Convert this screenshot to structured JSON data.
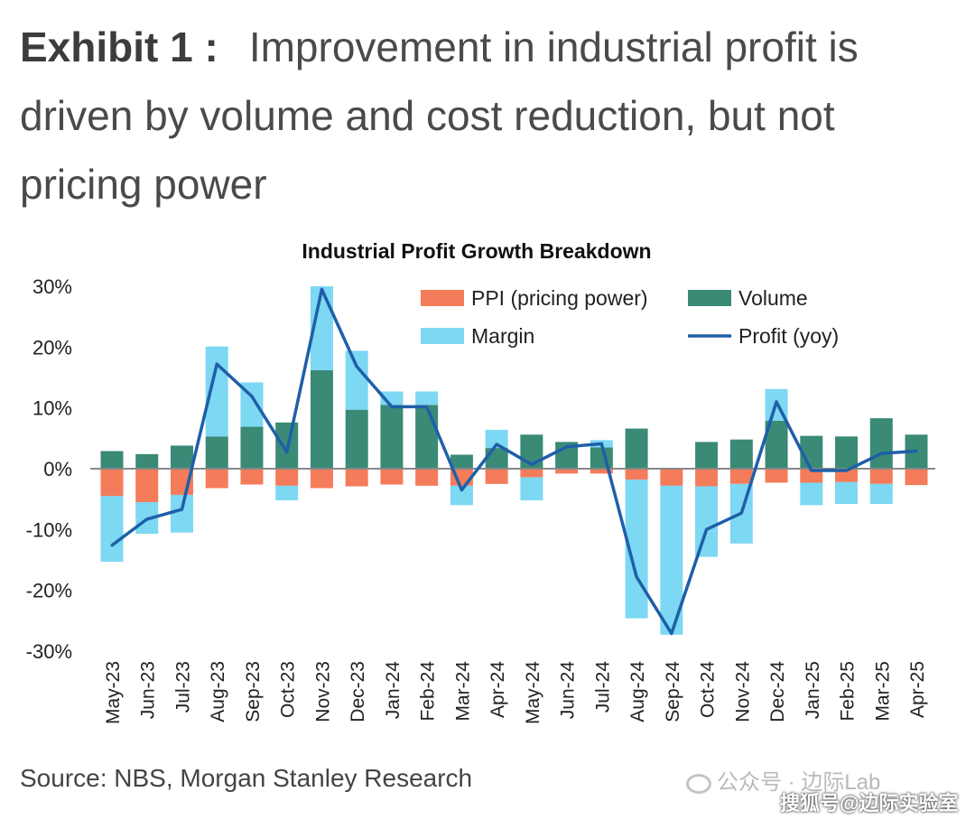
{
  "heading": {
    "lead": "Exhibit 1 :",
    "rest": "Improvement in industrial profit is driven by volume and cost reduction, but not pricing power"
  },
  "source": "Source: NBS, Morgan Stanley Research",
  "watermark": {
    "line1": "公众号 · 边际Lab",
    "line2": "搜狐号@边际实验室"
  },
  "colors": {
    "ppi": "#f47c5a",
    "volume": "#3a8a76",
    "margin": "#7dd8f3",
    "profit": "#1f5fa8",
    "zero_line": "#888888"
  },
  "chart_data": {
    "type": "bar",
    "title": "Industrial Profit Growth Breakdown",
    "stacked": true,
    "ylim": [
      -30,
      30
    ],
    "yticks": [
      30,
      20,
      10,
      0,
      -10,
      -20,
      -30
    ],
    "ytick_labels": [
      "30%",
      "20%",
      "10%",
      "0%",
      "-10%",
      "-20%",
      "-30%"
    ],
    "grid": false,
    "legend_position": "top-right",
    "categories": [
      "May-23",
      "Jun-23",
      "Jul-23",
      "Aug-23",
      "Sep-23",
      "Oct-23",
      "Nov-23",
      "Dec-23",
      "Jan-24",
      "Feb-24",
      "Mar-24",
      "Apr-24",
      "May-24",
      "Jun-24",
      "Jul-24",
      "Aug-24",
      "Sep-24",
      "Oct-24",
      "Nov-24",
      "Dec-24",
      "Jan-25",
      "Feb-25",
      "Mar-25",
      "Apr-25"
    ],
    "series": [
      {
        "name": "PPI (pricing power)",
        "kind": "bar",
        "color": "#f47c5a",
        "values": [
          -4.5,
          -5.5,
          -4.3,
          -3.2,
          -2.6,
          -2.8,
          -3.2,
          -2.9,
          -2.6,
          -2.8,
          -2.8,
          -2.5,
          -1.4,
          -0.8,
          -0.8,
          -1.8,
          -2.8,
          -2.9,
          -2.5,
          -2.3,
          -2.3,
          -2.2,
          -2.5,
          -2.7
        ]
      },
      {
        "name": "Volume",
        "kind": "bar",
        "color": "#3a8a76",
        "values": [
          2.9,
          2.4,
          3.8,
          5.3,
          6.9,
          7.6,
          16.2,
          9.7,
          10.5,
          10.5,
          2.3,
          3.4,
          5.6,
          4.4,
          3.5,
          6.6,
          0.0,
          4.4,
          4.8,
          7.9,
          5.4,
          5.3,
          8.3,
          5.6
        ]
      },
      {
        "name": "Margin",
        "kind": "bar",
        "color": "#7dd8f3",
        "values": [
          -10.8,
          -5.2,
          -6.2,
          14.8,
          7.3,
          -2.4,
          13.8,
          9.7,
          2.2,
          2.2,
          -3.2,
          3.0,
          -3.8,
          0.0,
          1.2,
          -22.8,
          -24.5,
          -11.6,
          -9.8,
          5.2,
          -3.7,
          -3.6,
          -3.3,
          0.0
        ]
      },
      {
        "name": "Profit (yoy)",
        "kind": "line",
        "color": "#1f5fa8",
        "values": [
          -12.6,
          -8.3,
          -6.7,
          17.2,
          11.9,
          2.7,
          29.5,
          16.8,
          10.2,
          10.2,
          -3.5,
          4.0,
          0.7,
          3.6,
          4.1,
          -17.8,
          -27.1,
          -10.0,
          -7.3,
          11.0,
          -0.3,
          -0.3,
          2.5,
          2.9
        ]
      }
    ]
  }
}
